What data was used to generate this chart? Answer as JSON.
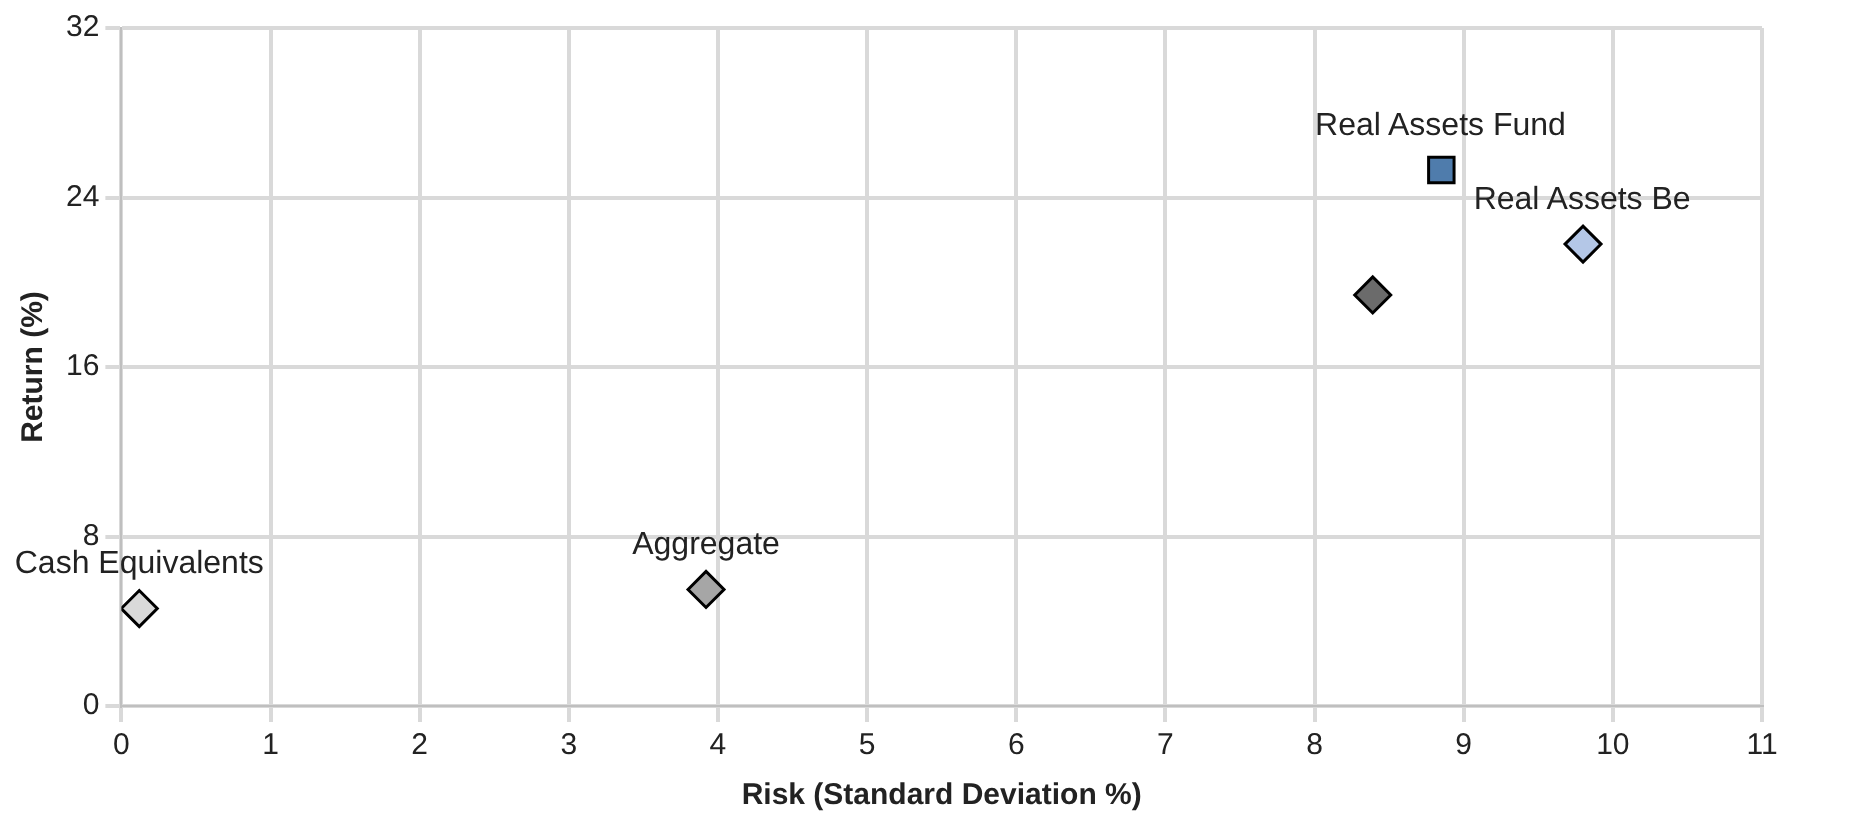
{
  "chart_data": {
    "type": "scatter",
    "xlabel": "Risk (Standard Deviation %)",
    "ylabel": "Return (%)",
    "xlim": [
      0,
      11
    ],
    "xticks": [
      0,
      1,
      2,
      3,
      4,
      5,
      6,
      7,
      8,
      9,
      10,
      11
    ],
    "ylim": [
      0,
      32
    ],
    "yticks": [
      0,
      8,
      16,
      24,
      32
    ],
    "grid": true,
    "legend": false,
    "series": [
      {
        "color": "#d9d9d9",
        "marker": "diamond",
        "x": [
          0.12
        ],
        "values": [
          4.6
        ]
      },
      {
        "color": "#a6a6a6",
        "marker": "diamond",
        "x": [
          3.92
        ],
        "values": [
          5.5
        ]
      },
      {
        "color": "#6b6b6b",
        "marker": "diamond",
        "x": [
          8.39
        ],
        "values": [
          19.4
        ]
      },
      {
        "color": "#4f7cac",
        "marker": "square",
        "x": [
          8.85
        ],
        "values": [
          25.3
        ]
      },
      {
        "color": "#b4c7e7",
        "marker": "diamond",
        "x": [
          9.8
        ],
        "values": [
          21.8
        ]
      }
    ],
    "annotations": [
      {
        "text": "Cash Equivalents",
        "x": 0.12,
        "y": 4.6
      },
      {
        "text": "Aggregate",
        "x": 3.92,
        "y": 5.5
      },
      {
        "text": "Real Assets Fund",
        "x": 8.85,
        "y": 25.3
      },
      {
        "text": "Real Assets Be",
        "x": 9.8,
        "y": 21.8
      }
    ]
  }
}
